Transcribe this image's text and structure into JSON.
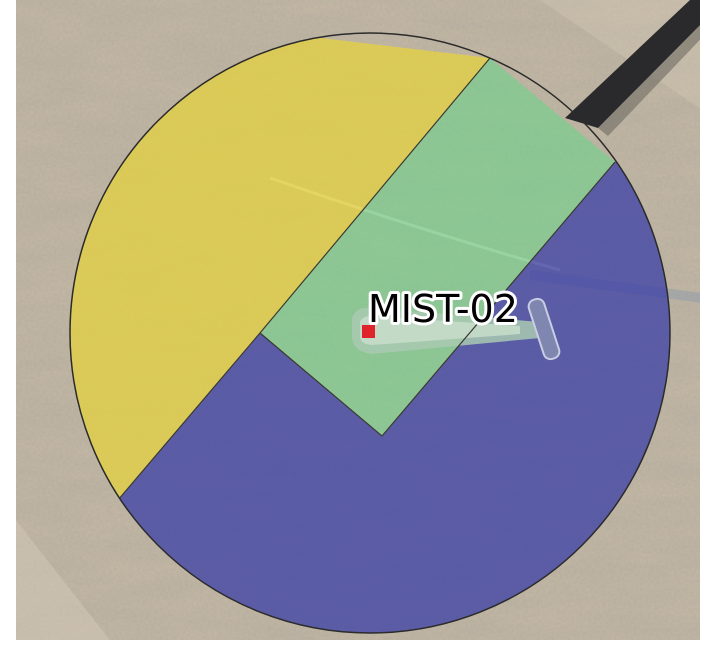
{
  "map": {
    "label": "MIST-02",
    "marker_color": "#e0242c",
    "basemap": "satellite-imagery",
    "zones": [
      {
        "id": "yellow",
        "color": "#e6d23a"
      },
      {
        "id": "green",
        "color": "#6fd28a"
      },
      {
        "id": "blue",
        "color": "#343aa6"
      }
    ]
  }
}
